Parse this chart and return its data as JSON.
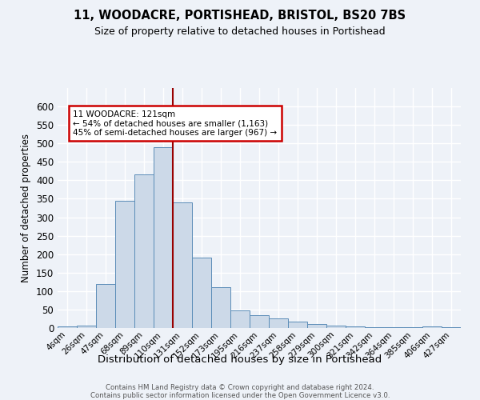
{
  "title_line1": "11, WOODACRE, PORTISHEAD, BRISTOL, BS20 7BS",
  "title_line2": "Size of property relative to detached houses in Portishead",
  "xlabel": "Distribution of detached houses by size in Portishead",
  "ylabel": "Number of detached properties",
  "bar_labels": [
    "4sqm",
    "26sqm",
    "47sqm",
    "68sqm",
    "89sqm",
    "110sqm",
    "131sqm",
    "152sqm",
    "173sqm",
    "195sqm",
    "216sqm",
    "237sqm",
    "258sqm",
    "279sqm",
    "300sqm",
    "321sqm",
    "342sqm",
    "364sqm",
    "385sqm",
    "406sqm",
    "427sqm"
  ],
  "bar_heights": [
    5,
    6,
    120,
    345,
    415,
    490,
    340,
    190,
    110,
    48,
    35,
    27,
    18,
    10,
    7,
    4,
    3,
    2,
    2,
    5,
    3
  ],
  "bar_color": "#ccd9e8",
  "bar_edgecolor": "#5b8db8",
  "background_color": "#eef2f8",
  "grid_color": "white",
  "annotation_line1": "11 WOODACRE: 121sqm",
  "annotation_line2": "← 54% of detached houses are smaller (1,163)",
  "annotation_line3": "45% of semi-detached houses are larger (967) →",
  "vline_x_index": 5.5,
  "vline_color": "#990000",
  "annotation_box_color": "white",
  "annotation_box_edgecolor": "#cc0000",
  "ylim": [
    0,
    650
  ],
  "yticks": [
    0,
    50,
    100,
    150,
    200,
    250,
    300,
    350,
    400,
    450,
    500,
    550,
    600
  ],
  "footer_line1": "Contains HM Land Registry data © Crown copyright and database right 2024.",
  "footer_line2": "Contains public sector information licensed under the Open Government Licence v3.0."
}
